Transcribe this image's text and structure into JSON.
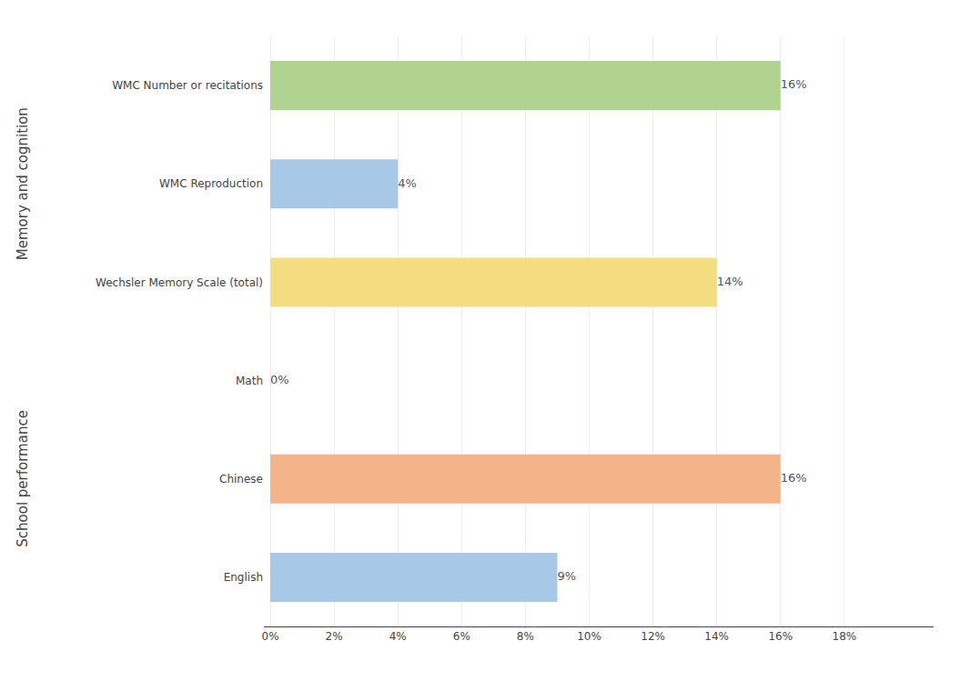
{
  "chart_data": {
    "type": "bar",
    "orientation": "horizontal",
    "categories": [
      "English",
      "Chinese",
      "Math",
      "Wechsler Memory Scale (total)",
      "WMC Reproduction",
      "WMC Number or recitations"
    ],
    "values": [
      9,
      16,
      0,
      14,
      4,
      16
    ],
    "value_labels": [
      "9%",
      "16%",
      "0%",
      "14%",
      "4%",
      "16%"
    ],
    "data_labels": true,
    "colors": [
      "#A8C8E8",
      "#F4B48A",
      "#C0C0C0",
      "#F4DC80",
      "#A8C8E8",
      "#B0D490"
    ],
    "xlim": [
      -0.2,
      20.8
    ],
    "xticks": [
      {
        "value": 0,
        "label": "0%"
      },
      {
        "value": 2,
        "label": "2%"
      },
      {
        "value": 4,
        "label": "4%"
      },
      {
        "value": 6,
        "label": "6%"
      },
      {
        "value": 8,
        "label": "8%"
      },
      {
        "value": 10,
        "label": "10%"
      },
      {
        "value": 12,
        "label": "12%"
      },
      {
        "value": 14,
        "label": "14%"
      },
      {
        "value": 16,
        "label": "16%"
      },
      {
        "value": 18,
        "label": "18%"
      }
    ],
    "grid": true,
    "annotations": [
      "School performance",
      "Memory and cognition"
    ]
  }
}
